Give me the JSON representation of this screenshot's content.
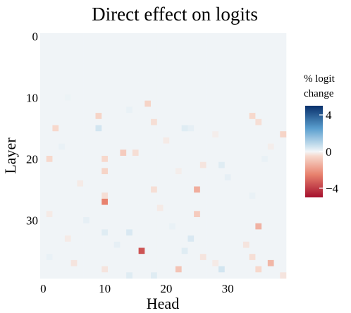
{
  "chart_data": {
    "type": "heatmap",
    "title": "Direct effect on logits",
    "xlabel": "Head",
    "ylabel": "Layer",
    "n_heads": 40,
    "n_layers": 40,
    "x_ticks": [
      0,
      10,
      20,
      30
    ],
    "y_ticks": [
      0,
      10,
      20,
      30
    ],
    "y_axis_reversed": true,
    "color_scale": {
      "title": "% logit change",
      "title_lines": [
        "% logit",
        "change"
      ],
      "min": -5,
      "max": 5,
      "ticks": [
        4,
        0,
        -4
      ],
      "tick_labels": [
        "4",
        "0",
        "−4"
      ],
      "colors": {
        "neg_strong": "#a50f2d",
        "neg_mid": "#e8826e",
        "neg_light": "#f7d8cc",
        "zero": "#f3f6f8",
        "pos_light": "#d2e5f0",
        "pos_mid": "#5b9fcf",
        "pos_strong": "#08306b"
      }
    },
    "baseline_value": 0.05,
    "cells": [
      {
        "layer": 11,
        "head": 17,
        "value": -0.6
      },
      {
        "layer": 13,
        "head": 9,
        "value": -0.6
      },
      {
        "layer": 13,
        "head": 34,
        "value": -0.5
      },
      {
        "layer": 14,
        "head": 18,
        "value": -0.4
      },
      {
        "layer": 14,
        "head": 35,
        "value": -0.4
      },
      {
        "layer": 15,
        "head": 2,
        "value": -0.5
      },
      {
        "layer": 15,
        "head": 9,
        "value": 0.5
      },
      {
        "layer": 15,
        "head": 23,
        "value": 0.3
      },
      {
        "layer": 15,
        "head": 24,
        "value": 0.2
      },
      {
        "layer": 16,
        "head": 39,
        "value": -0.6
      },
      {
        "layer": 19,
        "head": 13,
        "value": -0.8
      },
      {
        "layer": 19,
        "head": 15,
        "value": -0.4
      },
      {
        "layer": 20,
        "head": 1,
        "value": -0.5
      },
      {
        "layer": 20,
        "head": 10,
        "value": -0.5
      },
      {
        "layer": 21,
        "head": 26,
        "value": -0.3
      },
      {
        "layer": 21,
        "head": 29,
        "value": 0.3
      },
      {
        "layer": 22,
        "head": 10,
        "value": -0.6
      },
      {
        "layer": 25,
        "head": 18,
        "value": -0.4
      },
      {
        "layer": 25,
        "head": 25,
        "value": -1.5
      },
      {
        "layer": 26,
        "head": 10,
        "value": -0.4
      },
      {
        "layer": 27,
        "head": 10,
        "value": -2.5
      },
      {
        "layer": 29,
        "head": 25,
        "value": -0.8
      },
      {
        "layer": 29,
        "head": 1,
        "value": -0.2
      },
      {
        "layer": 31,
        "head": 35,
        "value": -1.4
      },
      {
        "layer": 32,
        "head": 10,
        "value": 0.3
      },
      {
        "layer": 32,
        "head": 14,
        "value": 0.4
      },
      {
        "layer": 33,
        "head": 24,
        "value": 0.4
      },
      {
        "layer": 34,
        "head": 33,
        "value": -0.3
      },
      {
        "layer": 35,
        "head": 16,
        "value": -3.5
      },
      {
        "layer": 35,
        "head": 23,
        "value": 0.3
      },
      {
        "layer": 36,
        "head": 26,
        "value": -0.3
      },
      {
        "layer": 36,
        "head": 34,
        "value": -0.4
      },
      {
        "layer": 37,
        "head": 37,
        "value": -1.3
      },
      {
        "layer": 37,
        "head": 5,
        "value": -0.3
      },
      {
        "layer": 38,
        "head": 22,
        "value": -1.0
      },
      {
        "layer": 38,
        "head": 29,
        "value": 0.5
      },
      {
        "layer": 38,
        "head": 35,
        "value": -0.5
      },
      {
        "layer": 38,
        "head": 10,
        "value": -0.3
      },
      {
        "layer": 39,
        "head": 14,
        "value": 0.3
      },
      {
        "layer": 39,
        "head": 18,
        "value": 0.3
      },
      {
        "layer": 39,
        "head": 39,
        "value": -0.3
      },
      {
        "layer": 12,
        "head": 14,
        "value": 0.15
      },
      {
        "layer": 17,
        "head": 20,
        "value": -0.2
      },
      {
        "layer": 18,
        "head": 3,
        "value": 0.15
      },
      {
        "layer": 23,
        "head": 30,
        "value": 0.2
      },
      {
        "layer": 24,
        "head": 6,
        "value": -0.2
      },
      {
        "layer": 26,
        "head": 34,
        "value": 0.15
      },
      {
        "layer": 28,
        "head": 19,
        "value": -0.2
      },
      {
        "layer": 30,
        "head": 7,
        "value": 0.2
      },
      {
        "layer": 33,
        "head": 4,
        "value": -0.2
      },
      {
        "layer": 34,
        "head": 12,
        "value": 0.2
      },
      {
        "layer": 36,
        "head": 1,
        "value": 0.15
      },
      {
        "layer": 37,
        "head": 28,
        "value": -0.2
      },
      {
        "layer": 20,
        "head": 36,
        "value": 0.15
      },
      {
        "layer": 22,
        "head": 22,
        "value": -0.15
      },
      {
        "layer": 10,
        "head": 4,
        "value": 0.1
      },
      {
        "layer": 16,
        "head": 28,
        "value": -0.15
      },
      {
        "layer": 31,
        "head": 21,
        "value": 0.15
      },
      {
        "layer": 18,
        "head": 37,
        "value": -0.15
      }
    ]
  }
}
